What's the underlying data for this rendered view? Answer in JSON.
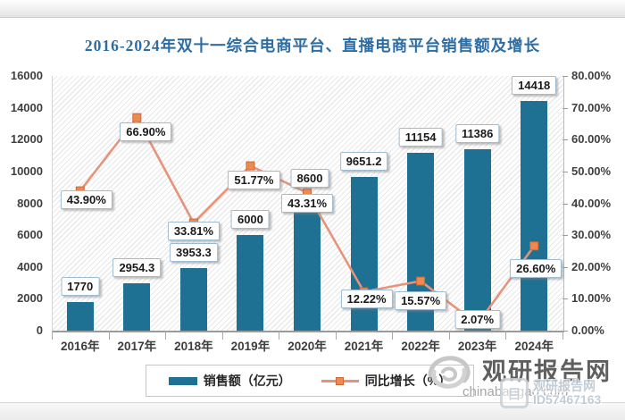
{
  "chart_data": {
    "type": "combo",
    "title": "2016-2024年双十一综合电商平台、直播电商平台销售额及增长",
    "categories": [
      "2016年",
      "2017年",
      "2018年",
      "2019年",
      "2020年",
      "2021年",
      "2022年",
      "2023年",
      "2024年"
    ],
    "series": [
      {
        "name": "销售额（亿元）",
        "type": "bar",
        "axis": "left",
        "color": "#1f7193",
        "values": [
          1770,
          2954.3,
          3953.3,
          6000,
          8600,
          9651.2,
          11154,
          11386,
          14418
        ],
        "labels": [
          "1770",
          "2954.3",
          "3953.3",
          "6000",
          "8600",
          "9651.2",
          "11154",
          "11386",
          "14418"
        ]
      },
      {
        "name": "同比增长（%）",
        "type": "line",
        "axis": "right",
        "color": "#e7937b",
        "marker_color": "#ef8a4c",
        "marker_border": "#c9683a",
        "values": [
          43.9,
          66.9,
          33.81,
          51.77,
          43.31,
          12.22,
          15.57,
          2.07,
          26.6
        ],
        "labels": [
          "43.90%",
          "66.90%",
          "33.81%",
          "51.77%",
          "43.31%",
          "12.22%",
          "15.57%",
          "2.07%",
          "26.60%"
        ]
      }
    ],
    "left_axis": {
      "min": 0,
      "max": 16000,
      "step": 2000,
      "ticks": [
        "0",
        "2000",
        "4000",
        "6000",
        "8000",
        "10000",
        "12000",
        "14000",
        "16000"
      ]
    },
    "right_axis": {
      "min": 0,
      "max": 80,
      "step": 10,
      "ticks": [
        "0.00%",
        "10.00%",
        "20.00%",
        "30.00%",
        "40.00%",
        "50.00%",
        "60.00%",
        "70.00%",
        "80.00%"
      ]
    },
    "legend_position": "bottom",
    "grid": false,
    "plot_background": "diagonal-hatch",
    "label_layout": {
      "bar_dx": [
        0,
        0,
        0,
        0,
        3,
        0,
        0,
        0,
        0
      ],
      "line_dx": [
        7,
        10,
        0,
        4,
        0,
        3,
        0,
        0,
        2
      ],
      "line_dy": [
        -1,
        5,
        -2,
        5,
        1,
        -2,
        11,
        -16,
        15
      ]
    }
  },
  "watermark": {
    "site_name": "观研报告网",
    "site_url": "chinabaogao.com",
    "badge": {
      "line1": "观研报告网",
      "line2": "ID57467163"
    }
  }
}
